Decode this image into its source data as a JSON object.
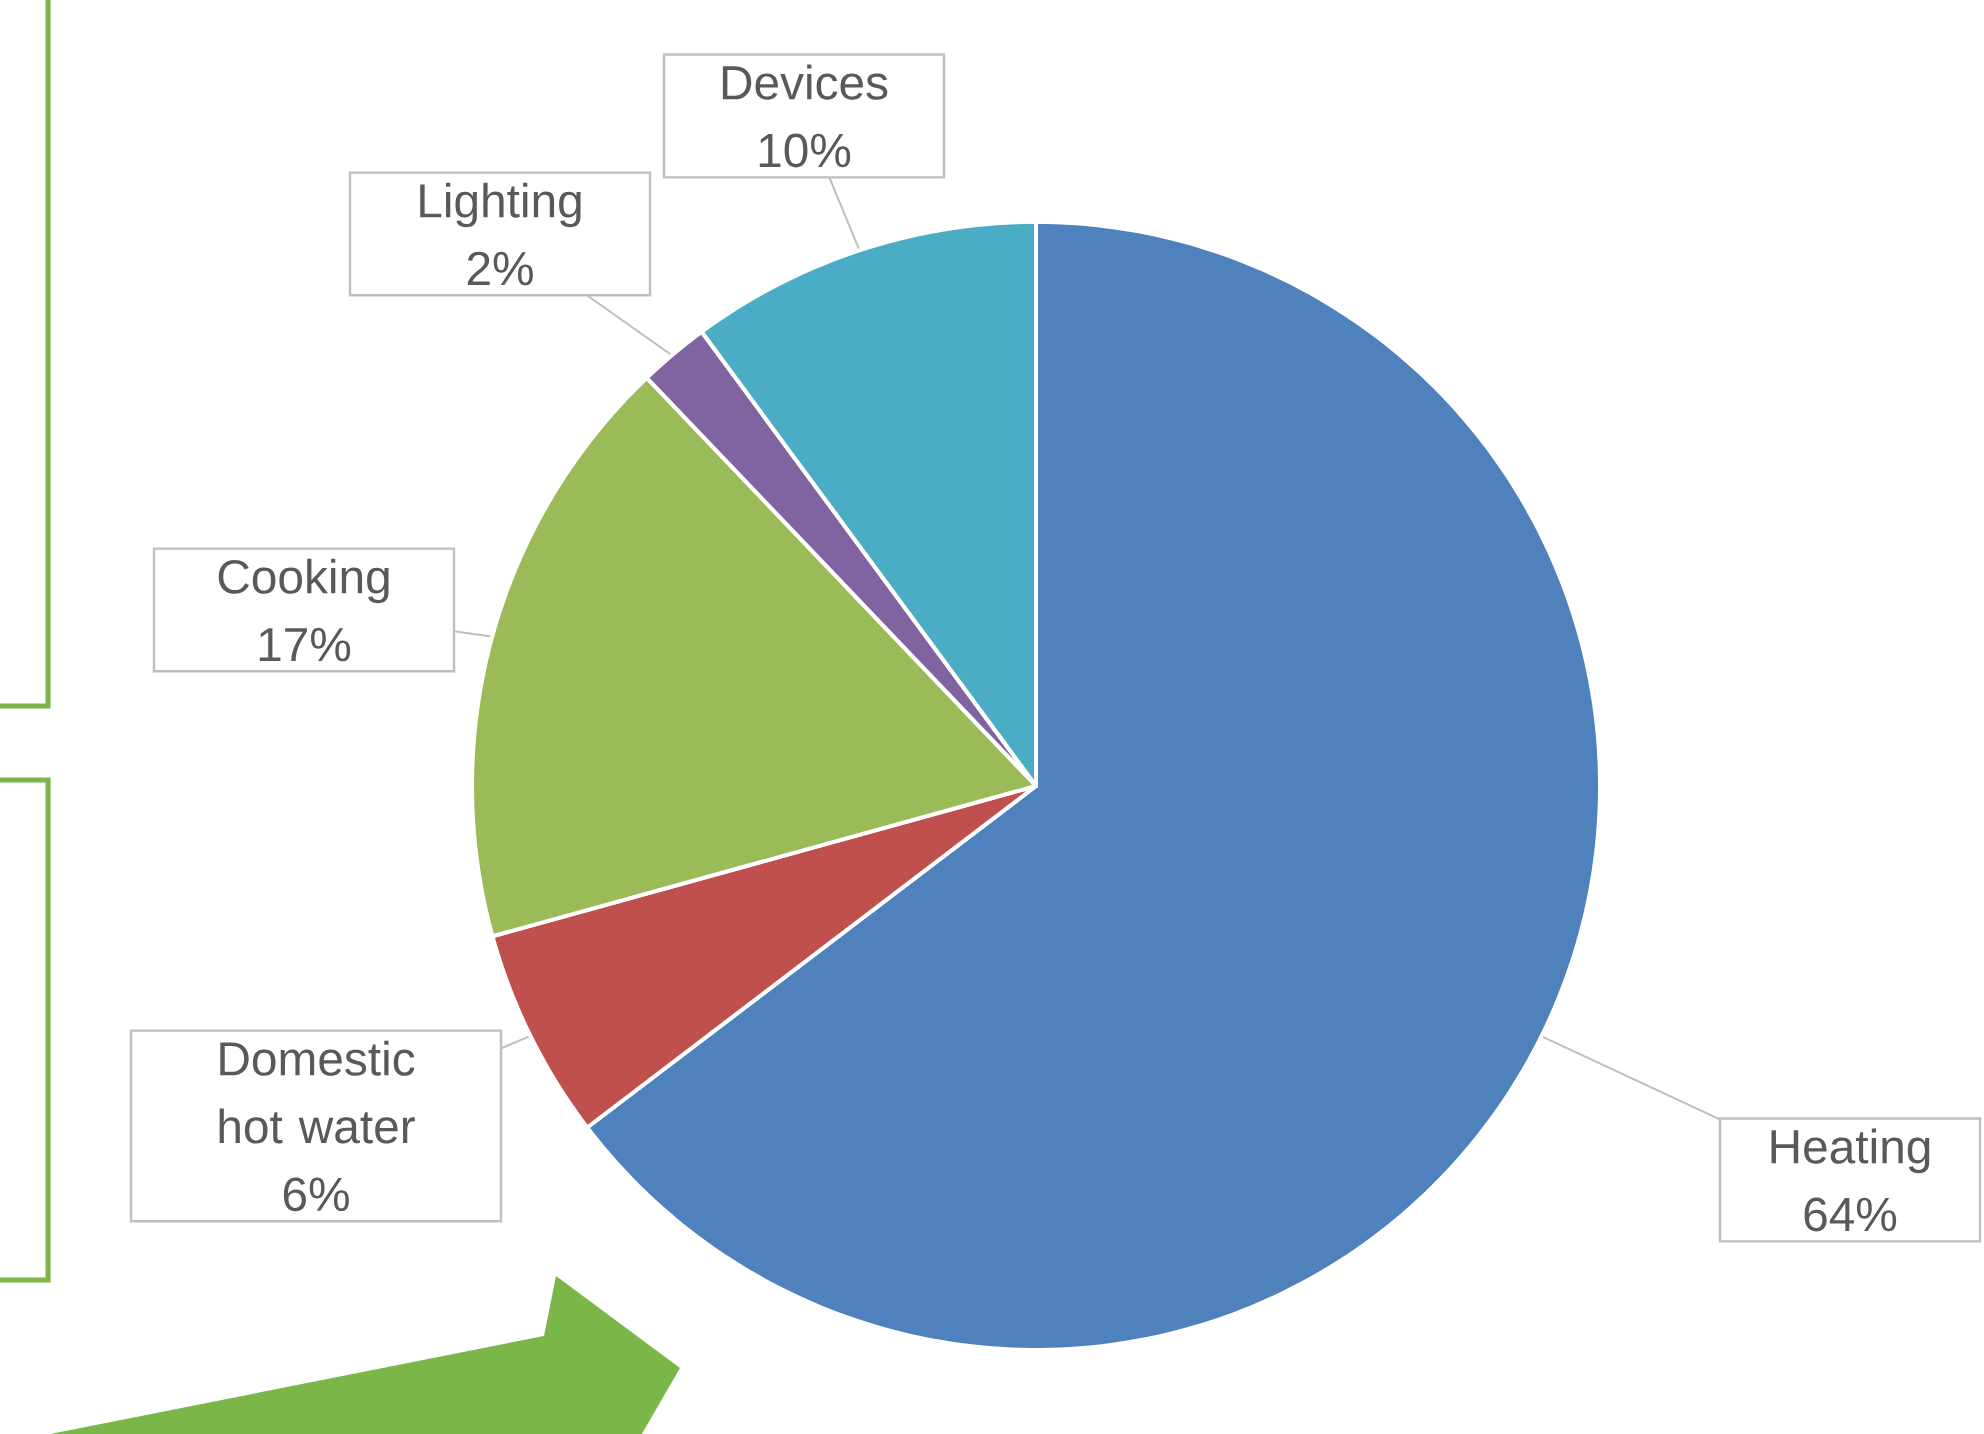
{
  "chart_data": {
    "type": "pie",
    "categories": [
      "Heating",
      "Domestic hot water",
      "Cooking",
      "Lighting",
      "Devices"
    ],
    "values": [
      64,
      6,
      17,
      2,
      10
    ],
    "colors": [
      "#4f81bd",
      "#c0504d",
      "#9bbb59",
      "#8064a2",
      "#4bacc6"
    ],
    "value_labels": [
      "64%",
      "6%",
      "17%",
      "2%",
      "10%"
    ]
  }
}
